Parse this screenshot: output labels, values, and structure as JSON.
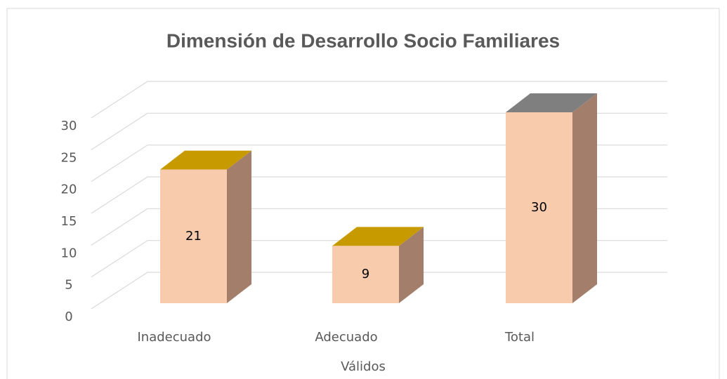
{
  "chart_data": {
    "type": "bar3d",
    "title": "Dimensión de Desarrollo Socio Familiares",
    "x_label": "Válidos",
    "categories": [
      "Inadecuado",
      "Adecuado",
      "Total"
    ],
    "values": [
      21,
      9,
      30
    ],
    "color": "#f8cbad",
    "side_color": "#a37f6b",
    "top_colors": [
      "#c79a00",
      "#c79a00",
      "#7f7f7f"
    ],
    "ylim": [
      0,
      30
    ],
    "yticks": [
      0,
      5,
      10,
      15,
      20,
      25,
      30
    ],
    "grid": true
  }
}
